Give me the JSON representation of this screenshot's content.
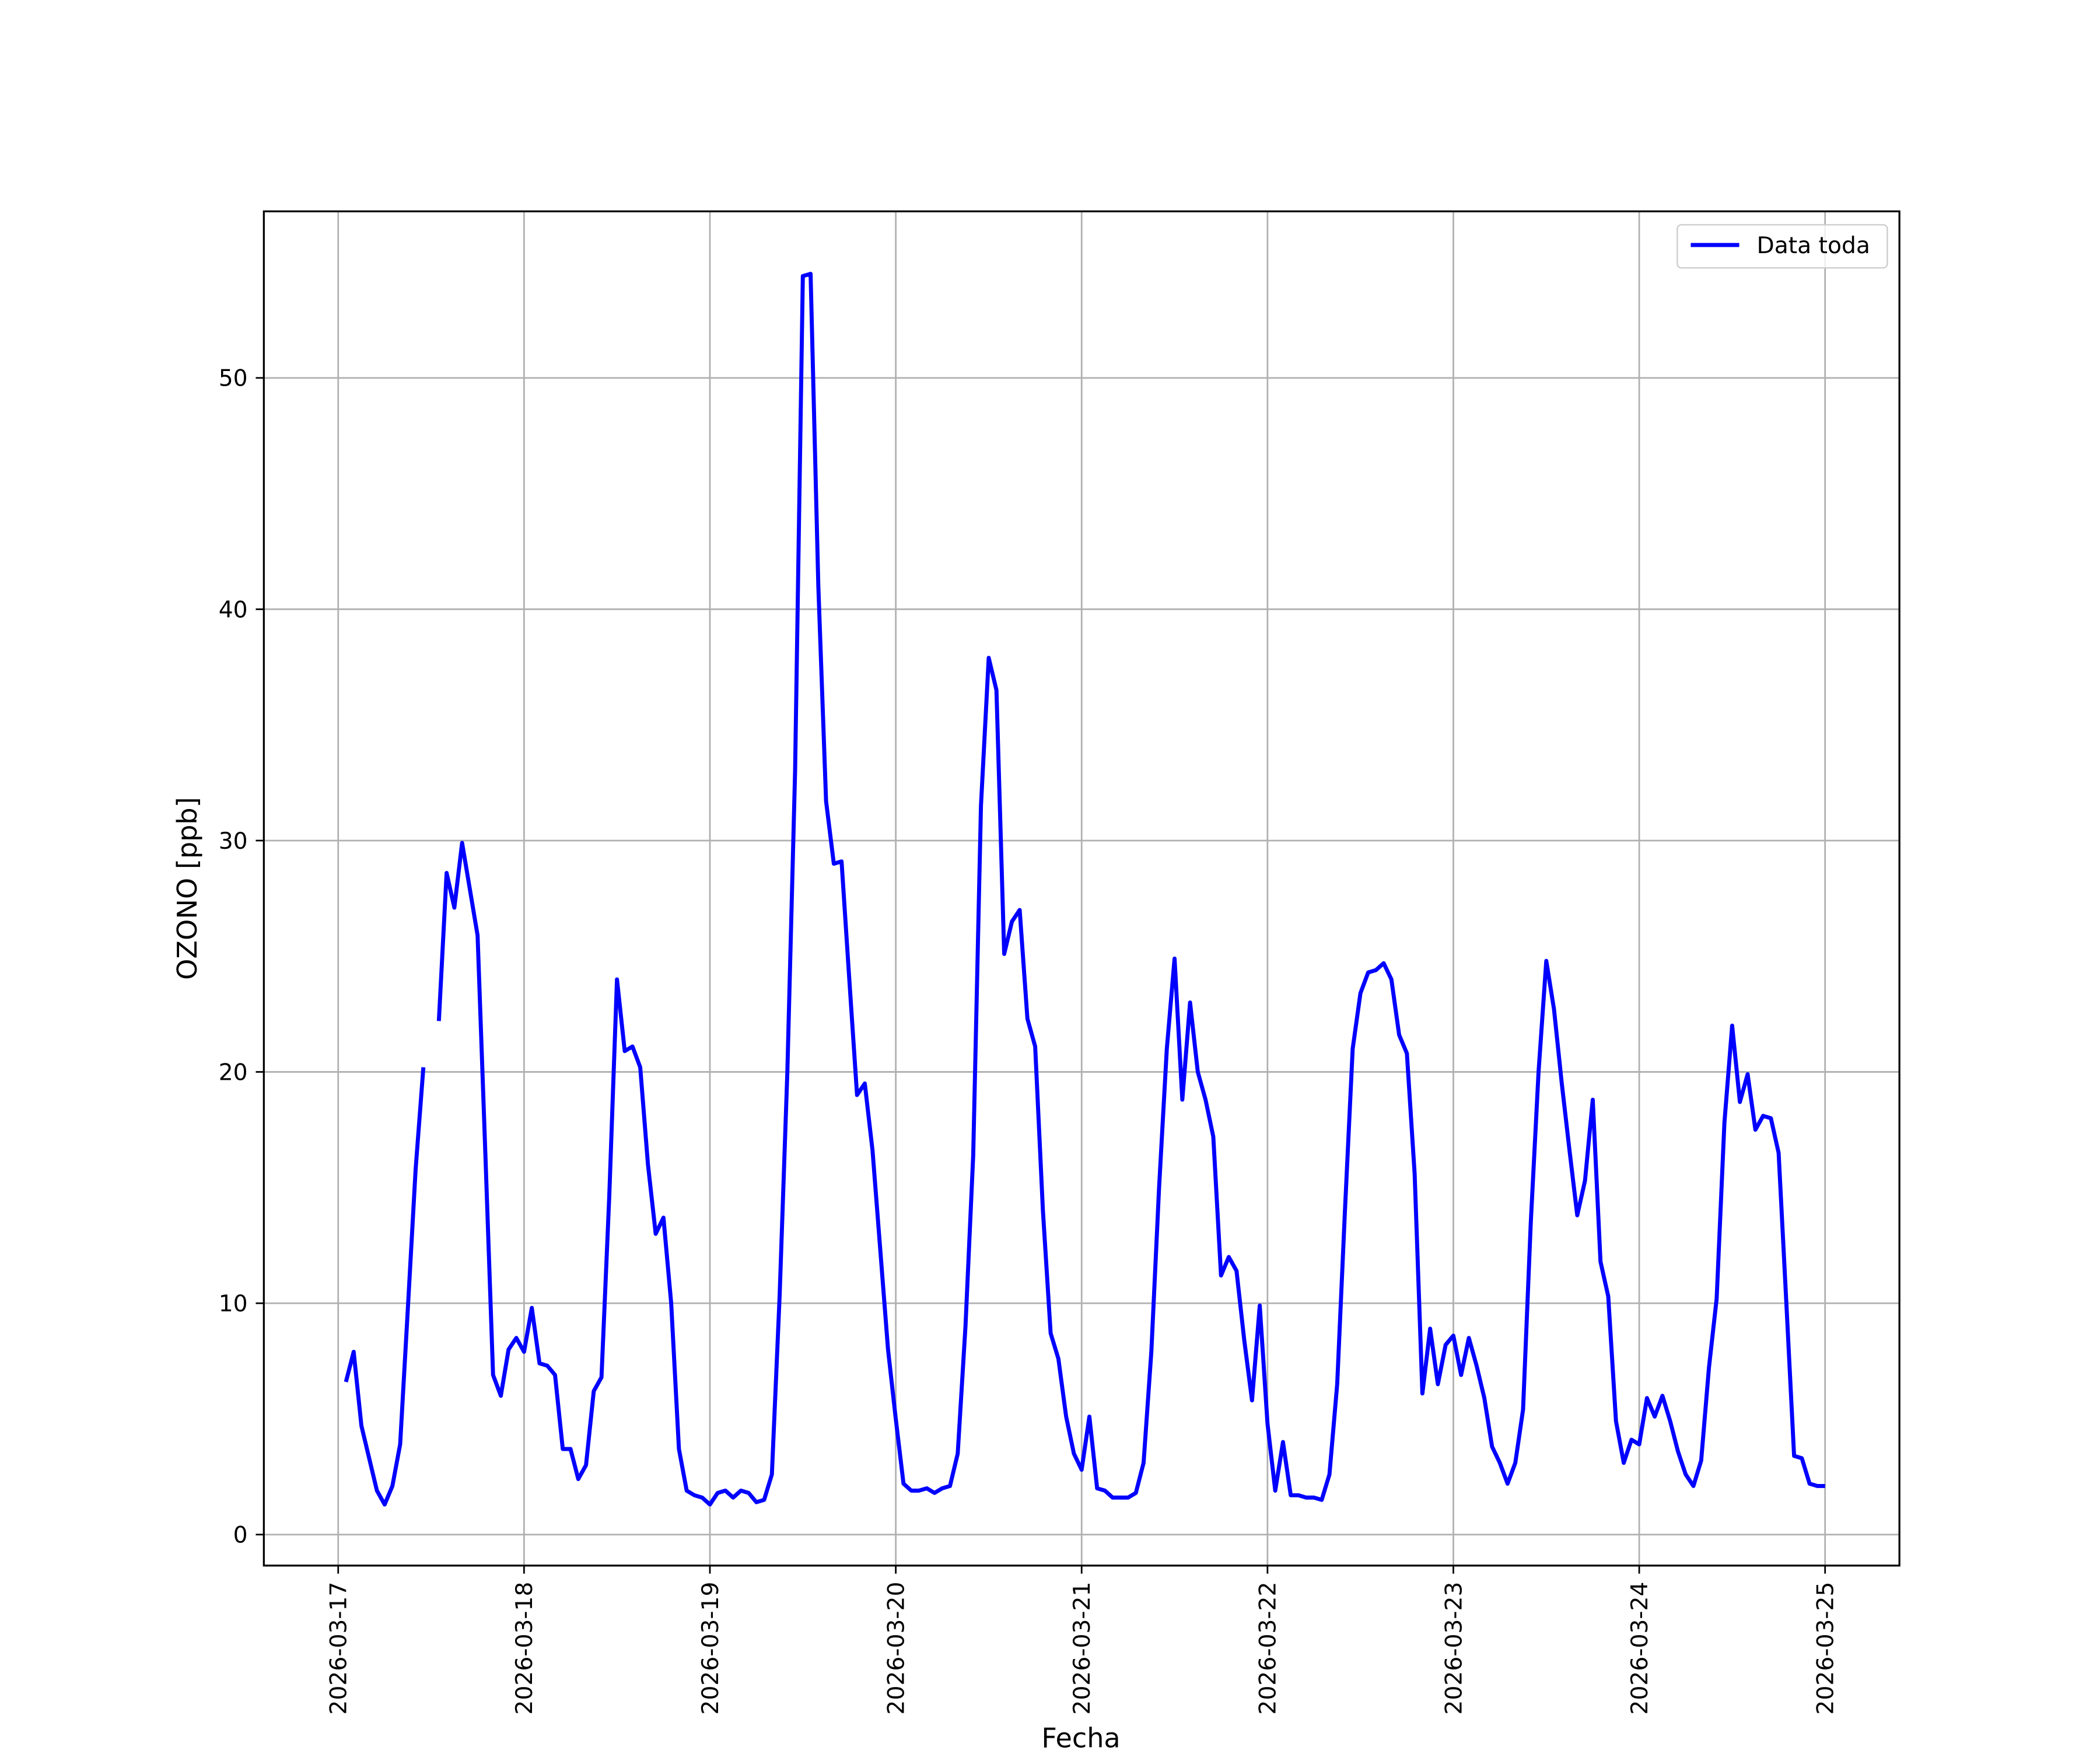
{
  "chart_data": {
    "type": "line",
    "x_label": "Fecha",
    "y_label": "OZONO [ppb]",
    "x": [
      "2026-03-17 01:00",
      "2026-03-17 02:00",
      "2026-03-17 03:00",
      "2026-03-17 04:00",
      "2026-03-17 05:00",
      "2026-03-17 06:00",
      "2026-03-17 07:00",
      "2026-03-17 08:00",
      "2026-03-17 09:00",
      "2026-03-17 10:00",
      "2026-03-17 11:00",
      "2026-03-17 12:00",
      "2026-03-17 13:00",
      "2026-03-17 14:00",
      "2026-03-17 15:00",
      "2026-03-17 16:00",
      "2026-03-17 17:00",
      "2026-03-17 18:00",
      "2026-03-17 19:00",
      "2026-03-17 20:00",
      "2026-03-17 21:00",
      "2026-03-17 22:00",
      "2026-03-17 23:00",
      "2026-03-18 00:00",
      "2026-03-18 01:00",
      "2026-03-18 02:00",
      "2026-03-18 03:00",
      "2026-03-18 04:00",
      "2026-03-18 05:00",
      "2026-03-18 06:00",
      "2026-03-18 07:00",
      "2026-03-18 08:00",
      "2026-03-18 09:00",
      "2026-03-18 10:00",
      "2026-03-18 11:00",
      "2026-03-18 12:00",
      "2026-03-18 13:00",
      "2026-03-18 14:00",
      "2026-03-18 15:00",
      "2026-03-18 16:00",
      "2026-03-18 17:00",
      "2026-03-18 18:00",
      "2026-03-18 19:00",
      "2026-03-18 20:00",
      "2026-03-18 21:00",
      "2026-03-18 22:00",
      "2026-03-18 23:00",
      "2026-03-19 00:00",
      "2026-03-19 01:00",
      "2026-03-19 02:00",
      "2026-03-19 03:00",
      "2026-03-19 04:00",
      "2026-03-19 05:00",
      "2026-03-19 06:00",
      "2026-03-19 07:00",
      "2026-03-19 08:00",
      "2026-03-19 09:00",
      "2026-03-19 10:00",
      "2026-03-19 11:00",
      "2026-03-19 12:00",
      "2026-03-19 13:00",
      "2026-03-19 14:00",
      "2026-03-19 15:00",
      "2026-03-19 16:00",
      "2026-03-19 17:00",
      "2026-03-19 18:00",
      "2026-03-19 19:00",
      "2026-03-19 20:00",
      "2026-03-19 21:00",
      "2026-03-19 22:00",
      "2026-03-19 23:00",
      "2026-03-20 00:00",
      "2026-03-20 01:00",
      "2026-03-20 02:00",
      "2026-03-20 03:00",
      "2026-03-20 04:00",
      "2026-03-20 05:00",
      "2026-03-20 06:00",
      "2026-03-20 07:00",
      "2026-03-20 08:00",
      "2026-03-20 09:00",
      "2026-03-20 10:00",
      "2026-03-20 11:00",
      "2026-03-20 12:00",
      "2026-03-20 13:00",
      "2026-03-20 14:00",
      "2026-03-20 15:00",
      "2026-03-20 16:00",
      "2026-03-20 17:00",
      "2026-03-20 18:00",
      "2026-03-20 19:00",
      "2026-03-20 20:00",
      "2026-03-20 21:00",
      "2026-03-20 22:00",
      "2026-03-20 23:00",
      "2026-03-21 00:00",
      "2026-03-21 01:00",
      "2026-03-21 02:00",
      "2026-03-21 03:00",
      "2026-03-21 04:00",
      "2026-03-21 05:00",
      "2026-03-21 06:00",
      "2026-03-21 07:00",
      "2026-03-21 08:00",
      "2026-03-21 09:00",
      "2026-03-21 10:00",
      "2026-03-21 11:00",
      "2026-03-21 12:00",
      "2026-03-21 13:00",
      "2026-03-21 14:00",
      "2026-03-21 15:00",
      "2026-03-21 16:00",
      "2026-03-21 17:00",
      "2026-03-21 18:00",
      "2026-03-21 19:00",
      "2026-03-21 20:00",
      "2026-03-21 21:00",
      "2026-03-21 22:00",
      "2026-03-21 23:00",
      "2026-03-22 00:00",
      "2026-03-22 01:00",
      "2026-03-22 02:00",
      "2026-03-22 03:00",
      "2026-03-22 04:00",
      "2026-03-22 05:00",
      "2026-03-22 06:00",
      "2026-03-22 07:00",
      "2026-03-22 08:00",
      "2026-03-22 09:00",
      "2026-03-22 10:00",
      "2026-03-22 11:00",
      "2026-03-22 12:00",
      "2026-03-22 13:00",
      "2026-03-22 14:00",
      "2026-03-22 15:00",
      "2026-03-22 16:00",
      "2026-03-22 17:00",
      "2026-03-22 18:00",
      "2026-03-22 19:00",
      "2026-03-22 20:00",
      "2026-03-22 21:00",
      "2026-03-22 22:00",
      "2026-03-22 23:00",
      "2026-03-23 00:00",
      "2026-03-23 01:00",
      "2026-03-23 02:00",
      "2026-03-23 03:00",
      "2026-03-23 04:00",
      "2026-03-23 05:00",
      "2026-03-23 06:00",
      "2026-03-23 07:00",
      "2026-03-23 08:00",
      "2026-03-23 09:00",
      "2026-03-23 10:00",
      "2026-03-23 11:00",
      "2026-03-23 12:00",
      "2026-03-23 13:00",
      "2026-03-23 14:00",
      "2026-03-23 15:00",
      "2026-03-23 16:00",
      "2026-03-23 17:00",
      "2026-03-23 18:00",
      "2026-03-23 19:00",
      "2026-03-23 20:00",
      "2026-03-23 21:00",
      "2026-03-23 22:00",
      "2026-03-23 23:00",
      "2026-03-24 00:00",
      "2026-03-24 01:00",
      "2026-03-24 02:00",
      "2026-03-24 03:00",
      "2026-03-24 04:00",
      "2026-03-24 05:00",
      "2026-03-24 06:00",
      "2026-03-24 07:00",
      "2026-03-24 08:00",
      "2026-03-24 09:00",
      "2026-03-24 10:00",
      "2026-03-24 11:00",
      "2026-03-24 12:00",
      "2026-03-24 13:00",
      "2026-03-24 14:00",
      "2026-03-24 15:00",
      "2026-03-24 16:00",
      "2026-03-24 17:00",
      "2026-03-24 18:00",
      "2026-03-24 19:00",
      "2026-03-24 20:00",
      "2026-03-24 21:00",
      "2026-03-24 22:00",
      "2026-03-24 23:00",
      "2026-03-25 00:00"
    ],
    "series": [
      {
        "name": "Data toda",
        "color": "#0000ff",
        "values": [
          6.6,
          7.9,
          4.7,
          3.3,
          1.9,
          1.3,
          2.1,
          3.9,
          9.8,
          15.8,
          20.2,
          null,
          22.2,
          28.6,
          27.1,
          29.9,
          27.9,
          25.9,
          16.5,
          6.9,
          6.0,
          8.0,
          8.5,
          7.9,
          9.8,
          7.4,
          7.3,
          6.9,
          3.7,
          3.7,
          2.4,
          3.0,
          6.2,
          6.8,
          14.6,
          24.0,
          20.9,
          21.1,
          20.2,
          16.0,
          13.0,
          13.7,
          10.0,
          3.7,
          1.9,
          1.7,
          1.6,
          1.3,
          1.8,
          1.9,
          1.6,
          1.9,
          1.8,
          1.4,
          1.5,
          2.6,
          10.3,
          20.0,
          33.0,
          54.4,
          54.5,
          41.0,
          31.7,
          29.0,
          29.1,
          24.0,
          19.0,
          19.5,
          16.6,
          12.3,
          8.0,
          5.0,
          2.2,
          1.9,
          1.9,
          2.0,
          1.8,
          2.0,
          2.1,
          3.5,
          9.0,
          16.4,
          31.5,
          37.9,
          36.5,
          25.1,
          26.5,
          27.0,
          22.3,
          21.1,
          14.0,
          8.7,
          7.6,
          5.1,
          3.5,
          2.8,
          5.1,
          2.0,
          1.9,
          1.6,
          1.6,
          1.6,
          1.8,
          3.1,
          7.9,
          15.0,
          21.0,
          24.9,
          18.8,
          23.0,
          20.0,
          18.8,
          17.2,
          11.2,
          12.0,
          11.4,
          8.4,
          5.8,
          9.9,
          4.8,
          1.9,
          4.0,
          1.7,
          1.7,
          1.6,
          1.6,
          1.5,
          2.6,
          6.5,
          14.0,
          21.0,
          23.4,
          24.3,
          24.4,
          24.7,
          24.0,
          21.6,
          20.8,
          15.6,
          6.1,
          8.9,
          6.5,
          8.2,
          8.6,
          6.9,
          8.5,
          7.3,
          5.9,
          3.8,
          3.1,
          2.2,
          3.1,
          5.4,
          13.5,
          20.0,
          24.8,
          22.7,
          19.5,
          16.6,
          13.8,
          15.3,
          18.8,
          11.8,
          10.3,
          4.9,
          3.1,
          4.1,
          3.9,
          5.9,
          5.1,
          6.0,
          4.9,
          3.6,
          2.6,
          2.1,
          3.2,
          7.2,
          10.2,
          17.8,
          22.0,
          18.7,
          19.9,
          17.5,
          18.1,
          18.0,
          16.5,
          10.0,
          3.4,
          3.3,
          2.2,
          2.1,
          2.1
        ]
      }
    ],
    "xlim": [
      "2026-03-16 14:24",
      "2026-03-25 09:36"
    ],
    "xticks": [
      "2026-03-17",
      "2026-03-18",
      "2026-03-19",
      "2026-03-20",
      "2026-03-21",
      "2026-03-22",
      "2026-03-23",
      "2026-03-24",
      "2026-03-25"
    ],
    "ylim": [
      -1.34,
      57.2
    ],
    "yticks": [
      0,
      10,
      20,
      30,
      40,
      50
    ],
    "grid": true,
    "legend": "upper right"
  }
}
